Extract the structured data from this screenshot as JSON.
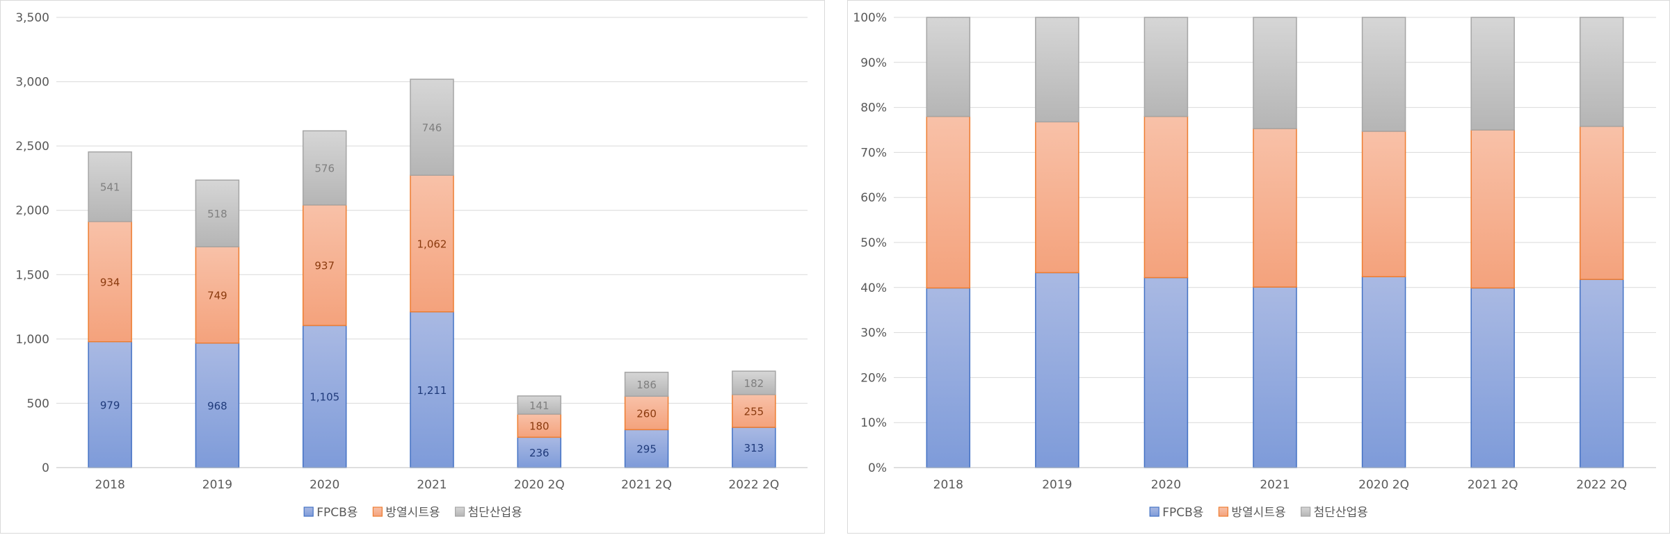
{
  "chart_data": [
    {
      "type": "bar",
      "stacked": true,
      "categories": [
        "2018",
        "2019",
        "2020",
        "2021",
        "2020 2Q",
        "2021 2Q",
        "2022 2Q"
      ],
      "series": [
        {
          "name": "FPCB용",
          "values": [
            979,
            968,
            1105,
            1211,
            236,
            295,
            313
          ],
          "labels": [
            "979",
            "968",
            "1,105",
            "1,211",
            "236",
            "295",
            "313"
          ]
        },
        {
          "name": "방열시트용",
          "values": [
            934,
            749,
            937,
            1062,
            180,
            260,
            255
          ],
          "labels": [
            "934",
            "749",
            "937",
            "1,062",
            "180",
            "260",
            "255"
          ]
        },
        {
          "name": "첨단산업용",
          "values": [
            541,
            518,
            576,
            746,
            141,
            186,
            182
          ],
          "labels": [
            "541",
            "518",
            "576",
            "746",
            "141",
            "186",
            "182"
          ]
        }
      ],
      "ylim": [
        0,
        3500
      ],
      "yticks": [
        "0",
        "500",
        "1,000",
        "1,500",
        "2,000",
        "2,500",
        "3,000",
        "3,500"
      ],
      "grid": true,
      "legend": "bottom",
      "title": "",
      "xlabel": "",
      "ylabel": ""
    },
    {
      "type": "bar",
      "stacked": true,
      "percent": true,
      "categories": [
        "2018",
        "2019",
        "2020",
        "2021",
        "2020 2Q",
        "2021 2Q",
        "2022 2Q"
      ],
      "series": [
        {
          "name": "FPCB용",
          "values": [
            39.9,
            43.3,
            42.2,
            40.1,
            42.4,
            39.9,
            41.8
          ]
        },
        {
          "name": "방열시트용",
          "values": [
            38.1,
            33.5,
            35.8,
            35.2,
            32.3,
            35.1,
            34.0
          ]
        },
        {
          "name": "첨단산업용",
          "values": [
            22.0,
            23.2,
            22.0,
            24.7,
            25.3,
            25.0,
            24.2
          ]
        }
      ],
      "ylim": [
        0,
        100
      ],
      "yticks": [
        "0%",
        "10%",
        "20%",
        "30%",
        "40%",
        "50%",
        "60%",
        "70%",
        "80%",
        "90%",
        "100%"
      ],
      "grid": true,
      "legend": "bottom",
      "title": "",
      "xlabel": "",
      "ylabel": ""
    }
  ],
  "colors": {
    "series_top": [
      "#a9b9e3",
      "#f8c1a8",
      "#d6d6d6"
    ],
    "series_bottom": [
      "#7e9bd9",
      "#f4a27c",
      "#b5b5b5"
    ],
    "series_stroke": [
      "#4472c4",
      "#ed7d31",
      "#a5a5a5"
    ],
    "label_text": [
      "#1f3a7a",
      "#8a3a0e",
      "#7f7f7f"
    ],
    "grid": "#d9d9d9",
    "axis_text": "#595959"
  }
}
